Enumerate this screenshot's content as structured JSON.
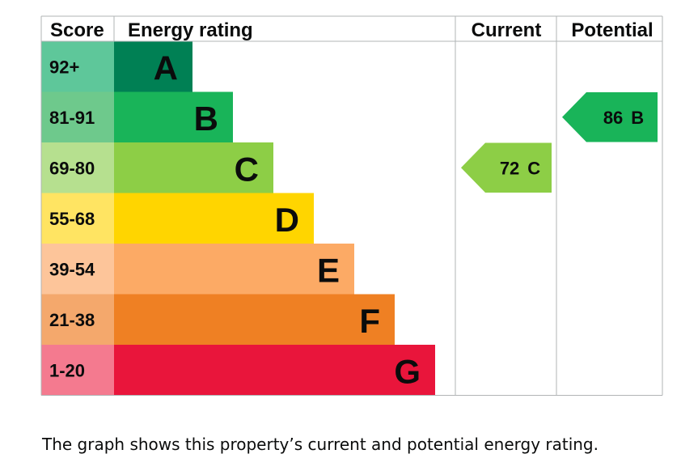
{
  "chart_data": {
    "type": "bar",
    "headers": {
      "score": "Score",
      "rating": "Energy rating",
      "current": "Current",
      "potential": "Potential"
    },
    "bands": [
      {
        "letter": "A",
        "range": "92+",
        "band_color": "#008054",
        "score_color": "#5ec79a"
      },
      {
        "letter": "B",
        "range": "81-91",
        "band_color": "#19b459",
        "score_color": "#6ec98c"
      },
      {
        "letter": "C",
        "range": "69-80",
        "band_color": "#8dce46",
        "score_color": "#b6e08f"
      },
      {
        "letter": "D",
        "range": "55-68",
        "band_color": "#ffd500",
        "score_color": "#ffe462"
      },
      {
        "letter": "E",
        "range": "39-54",
        "band_color": "#fcaa65",
        "score_color": "#fdc59a"
      },
      {
        "letter": "F",
        "range": "21-38",
        "band_color": "#ef8023",
        "score_color": "#f4a86c"
      },
      {
        "letter": "G",
        "range": "1-20",
        "band_color": "#e9153b",
        "score_color": "#f47a8f"
      }
    ],
    "current": {
      "score": "72",
      "band": "C",
      "color": "#8dce46"
    },
    "potential": {
      "score": "86",
      "band": "B",
      "color": "#19b459"
    }
  },
  "caption": "The graph shows this property’s current and potential energy rating."
}
